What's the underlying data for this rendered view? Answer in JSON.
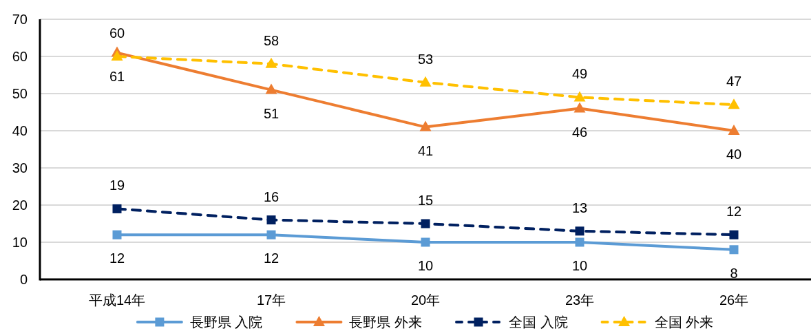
{
  "chart_data": {
    "type": "line",
    "categories": [
      "平成14年",
      "17年",
      "20年",
      "23年",
      "26年"
    ],
    "series": [
      {
        "name": "長野県 入院",
        "color": "#5b9bd5",
        "marker": "square",
        "line_style": "solid",
        "values": [
          12,
          12,
          10,
          10,
          8
        ]
      },
      {
        "name": "長野県 外来",
        "color": "#ed7d31",
        "marker": "triangle",
        "line_style": "solid",
        "values": [
          61,
          51,
          41,
          46,
          40
        ]
      },
      {
        "name": "全国 入院",
        "color": "#002060",
        "marker": "square",
        "line_style": "dashed",
        "values": [
          19,
          16,
          15,
          13,
          12
        ]
      },
      {
        "name": "全国 外来",
        "color": "#ffc000",
        "marker": "triangle",
        "line_style": "dashed",
        "values": [
          60,
          58,
          53,
          49,
          47
        ]
      }
    ],
    "ylim": [
      0,
      70
    ],
    "yticks": [
      0,
      10,
      20,
      30,
      40,
      50,
      60,
      70
    ],
    "grid": "y",
    "legend": "bottom",
    "data_labels": true
  }
}
